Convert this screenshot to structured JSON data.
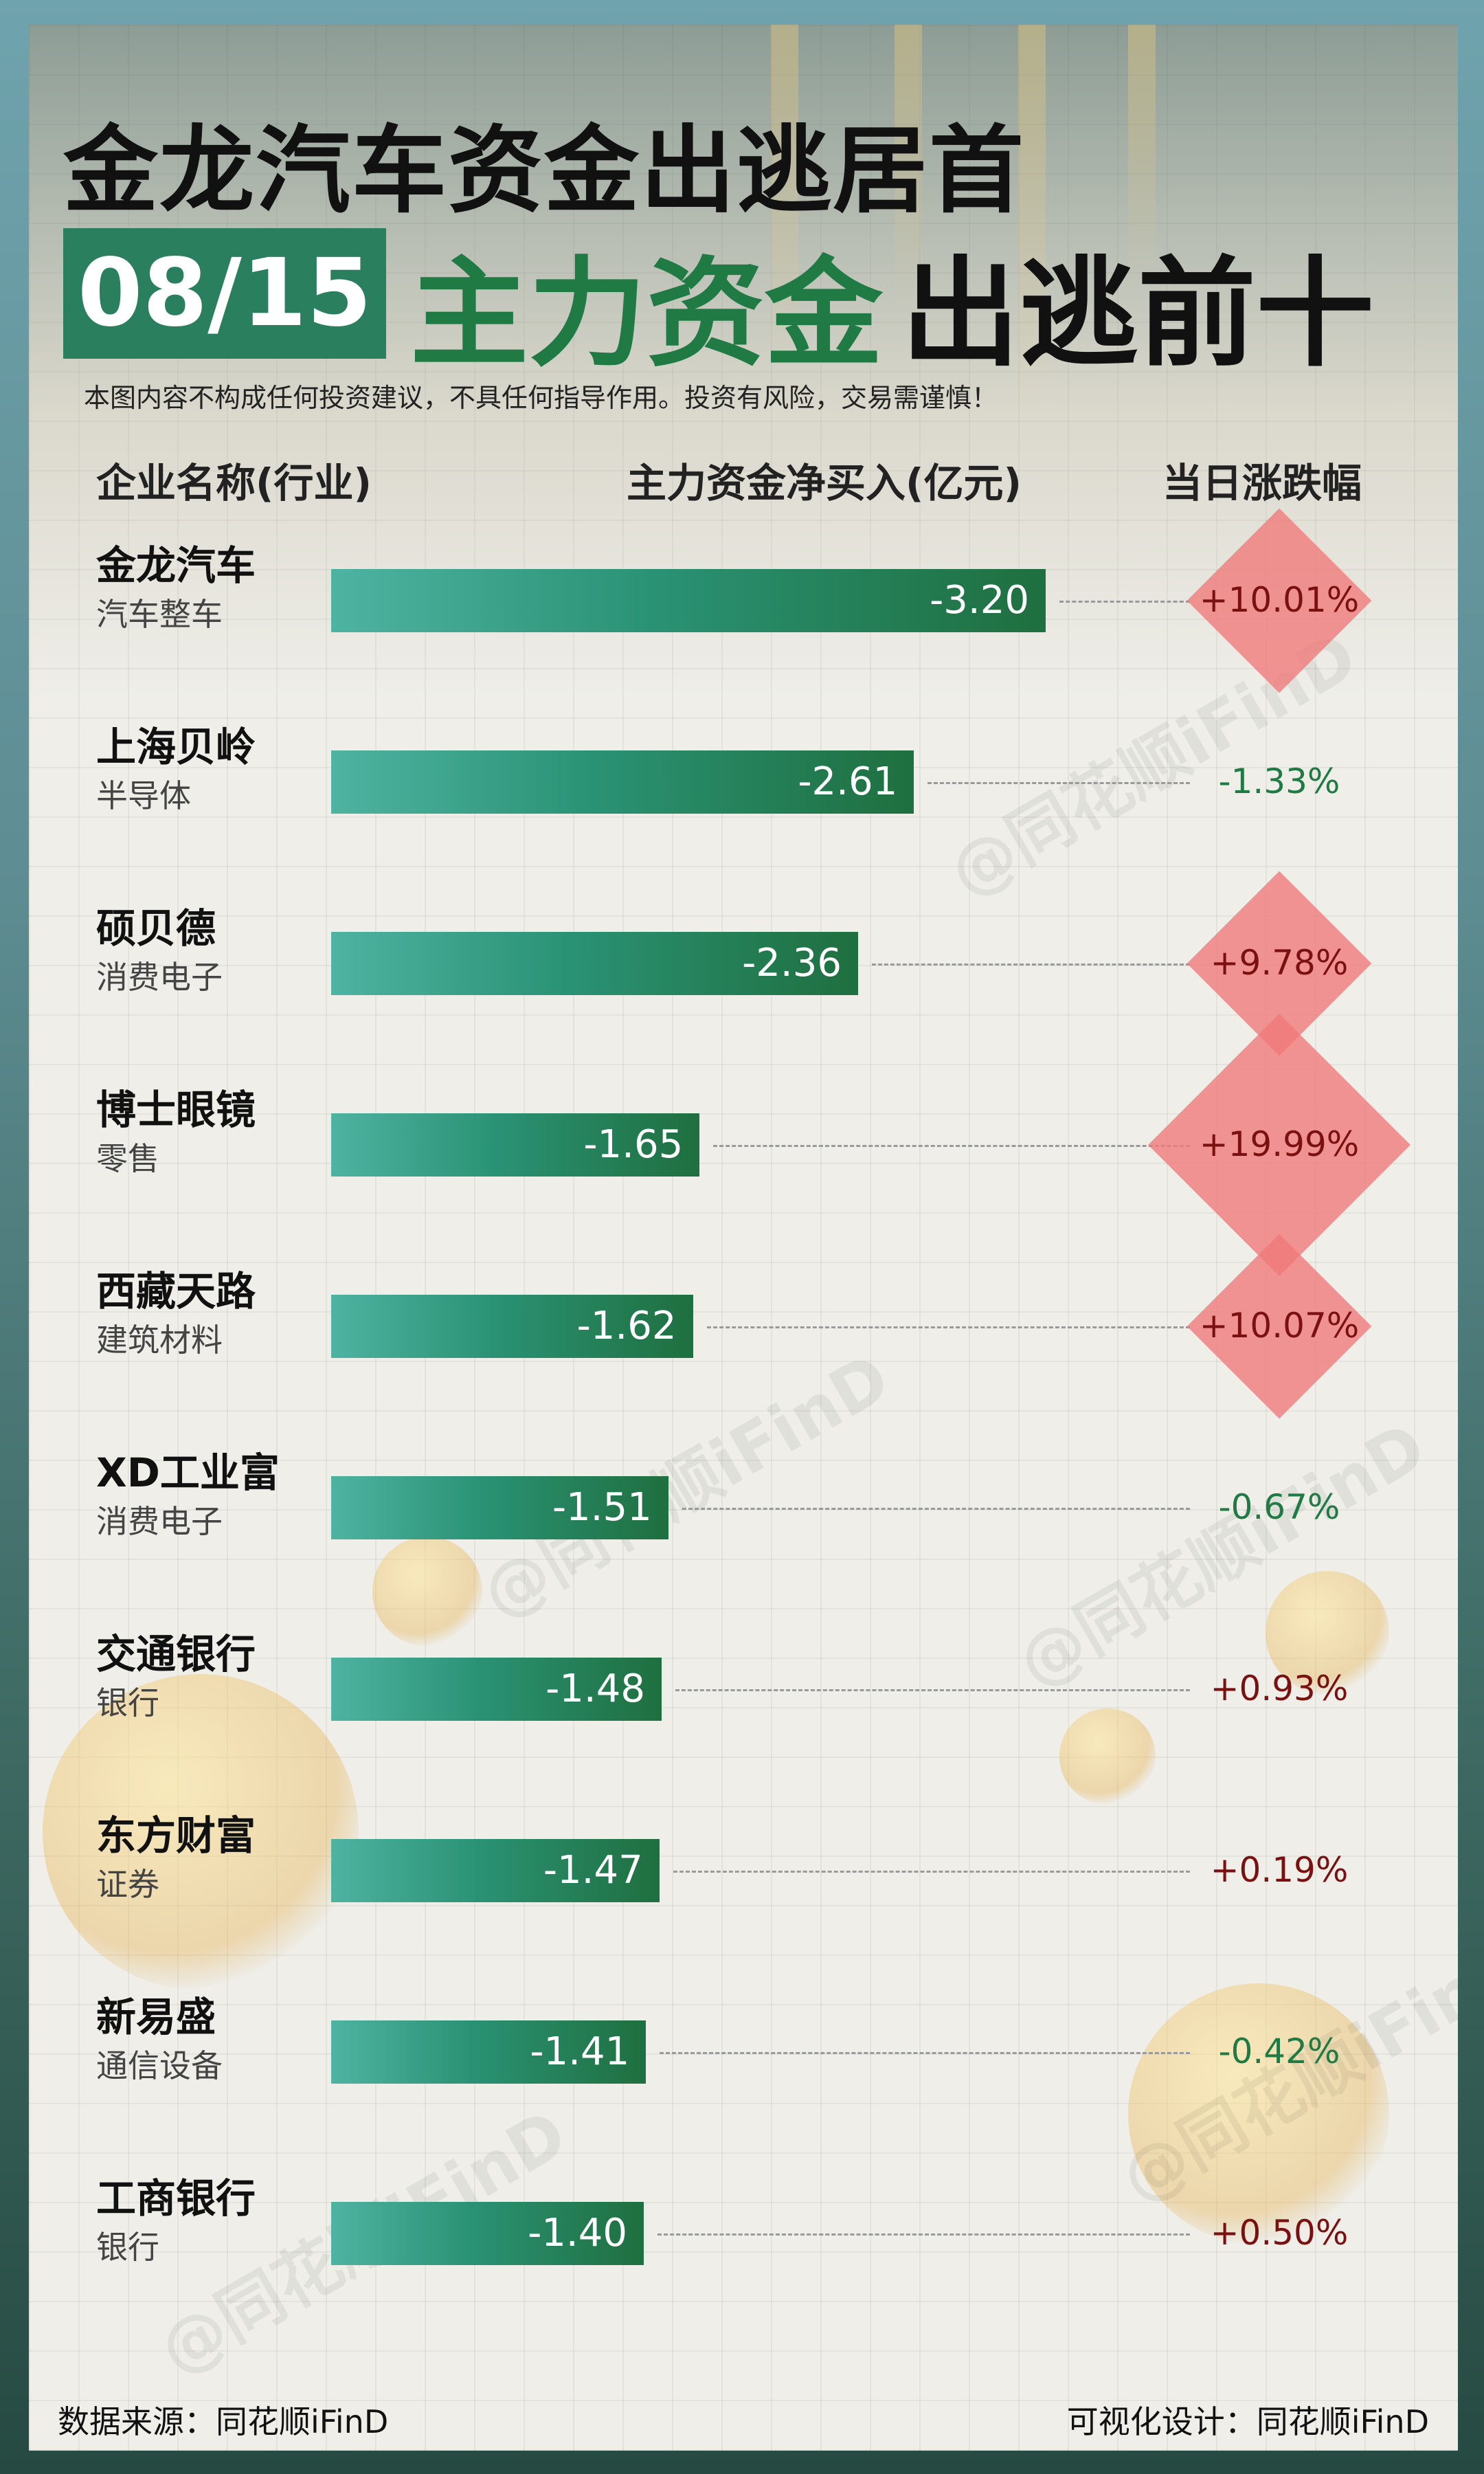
{
  "header": {
    "title": "金龙汽车资金出逃居首",
    "date": "08/15",
    "subtitle_main": "主力资金",
    "subtitle_rest": "出逃前十",
    "disclaimer": "本图内容不构成任何投资建议，不具任何指导作用。投资有风险，交易需谨慎！"
  },
  "columns": {
    "company": "企业名称(行业)",
    "flow": "主力资金净买入(亿元)",
    "change": "当日涨跌幅"
  },
  "colors": {
    "bar_start": "#4eb3a1",
    "bar_end": "#1f6f3f",
    "up": "#7a1010",
    "down": "#1f7a44",
    "diamond": "#f07878"
  },
  "chart_data": {
    "type": "bar",
    "orientation": "horizontal",
    "xlabel": "主力资金净买入(亿元)",
    "categories": [
      "金龙汽车",
      "上海贝岭",
      "硕贝德",
      "博士眼镜",
      "西藏天路",
      "XD工业富",
      "交通银行",
      "东方财富",
      "新易盛",
      "工商银行"
    ],
    "industries": [
      "汽车整车",
      "半导体",
      "消费电子",
      "零售",
      "建筑材料",
      "消费电子",
      "银行",
      "证券",
      "通信设备",
      "银行"
    ],
    "values": [
      -3.2,
      -2.61,
      -2.36,
      -1.65,
      -1.62,
      -1.51,
      -1.48,
      -1.47,
      -1.41,
      -1.4
    ],
    "value_labels": [
      "-3.20",
      "-2.61",
      "-2.36",
      "-1.65",
      "-1.62",
      "-1.51",
      "-1.48",
      "-1.47",
      "-1.41",
      "-1.40"
    ],
    "changes": [
      10.01,
      -1.33,
      9.78,
      19.99,
      10.07,
      -0.67,
      0.93,
      0.19,
      -0.42,
      0.5
    ],
    "change_labels": [
      "+10.01%",
      "-1.33%",
      "+9.78%",
      "+19.99%",
      "+10.07%",
      "-0.67%",
      "+0.93%",
      "+0.19%",
      "-0.42%",
      "+0.50%"
    ]
  },
  "footer": {
    "source": "数据来源：同花顺iFinD",
    "design": "可视化设计：同花顺iFinD"
  },
  "watermark": "@同花顺iFinD"
}
